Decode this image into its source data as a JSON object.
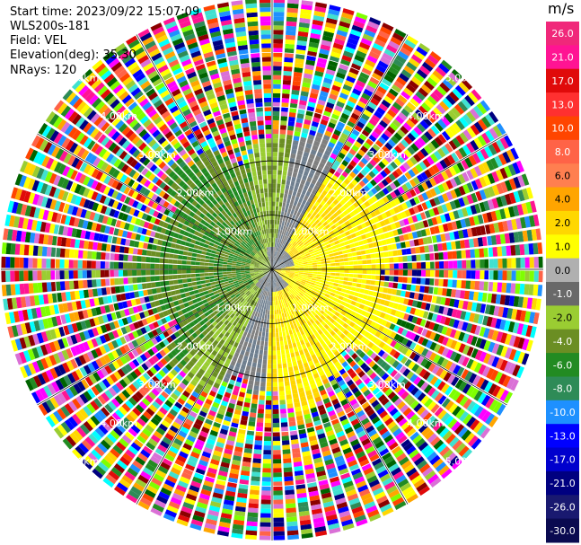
{
  "info": {
    "start_time": "Start time: 2023/09/22 15:07:09",
    "instrument": "WLS200s-181",
    "field": "Field: VEL",
    "elevation": "Elevation(deg): 35.30",
    "nrays": "NRays: 120"
  },
  "colorbar": {
    "unit": "m/s",
    "ticks": [
      "26.0",
      "21.0",
      "17.0",
      "13.0",
      "10.0",
      "8.0",
      "6.0",
      "4.0",
      "2.0",
      "1.0",
      "0.0",
      "-1.0",
      "-2.0",
      "-4.0",
      "-6.0",
      "-8.0",
      "-10.0",
      "-13.0",
      "-17.0",
      "-21.0",
      "-26.0",
      "-30.0"
    ],
    "colors": [
      "#f0287a",
      "#ff1493",
      "#e00a0a",
      "#ff3030",
      "#ff4500",
      "#ff6347",
      "#ff7f50",
      "#ffa500",
      "#ffd700",
      "#ffff00",
      "#b0b0b0",
      "#696969",
      "#9acd32",
      "#6b8e23",
      "#228b22",
      "#2e8b57",
      "#1e90ff",
      "#0000ff",
      "#0000cd",
      "#000080",
      "#191970",
      "#0a0a50"
    ]
  },
  "chart_data": {
    "type": "ppi",
    "field": "VEL",
    "elevation_deg": 35.3,
    "nrays": 120,
    "range_rings_km": [
      1,
      2,
      3,
      4,
      5
    ],
    "range_labels": [
      "1.00km",
      "2.00km",
      "3.00km",
      "4.00km",
      "5.00km"
    ],
    "spoke_angles_deg": [
      0,
      30,
      60,
      90,
      120,
      150,
      180,
      210,
      240,
      270,
      300,
      330
    ],
    "valid_range_km": 2.4,
    "description_values": {
      "inner_zone_colors": [
        "#ffff00",
        "#ffd700",
        "#9acd32",
        "#6b8e23",
        "#228b22",
        "#808080",
        "#708090"
      ],
      "noise_colors": [
        "#ff1493",
        "#e00a0a",
        "#ff4500",
        "#ffa500",
        "#ffff00",
        "#9acd32",
        "#228b22",
        "#2e8b57",
        "#1e90ff",
        "#0000ff",
        "#000080",
        "#ff00ff",
        "#00ffff",
        "#8b0000",
        "#ffd700",
        "#006400",
        "#ff6347",
        "#7fff00",
        "#40e0d0",
        "#da70d6"
      ]
    }
  }
}
